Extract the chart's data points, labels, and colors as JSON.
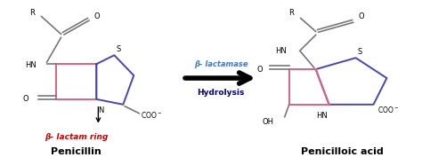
{
  "bg_color": "#ffffff",
  "beta_lactam_color": "#e06080",
  "thiazolidine_color": "#4444bb",
  "bond_color": "#777777",
  "label_beta_lactamase": "β- lactamase",
  "label_hydrolysis": "Hydrolysis",
  "label_penicillin": "Penicillin",
  "label_penicilloic": "Penicilloic acid",
  "label_beta_lactam_ring": "β- lactam ring",
  "label_beta_lactam_color": "#cc0000",
  "label_beta_lactamase_color": "#4477cc",
  "label_hydrolysis_color": "#000080"
}
